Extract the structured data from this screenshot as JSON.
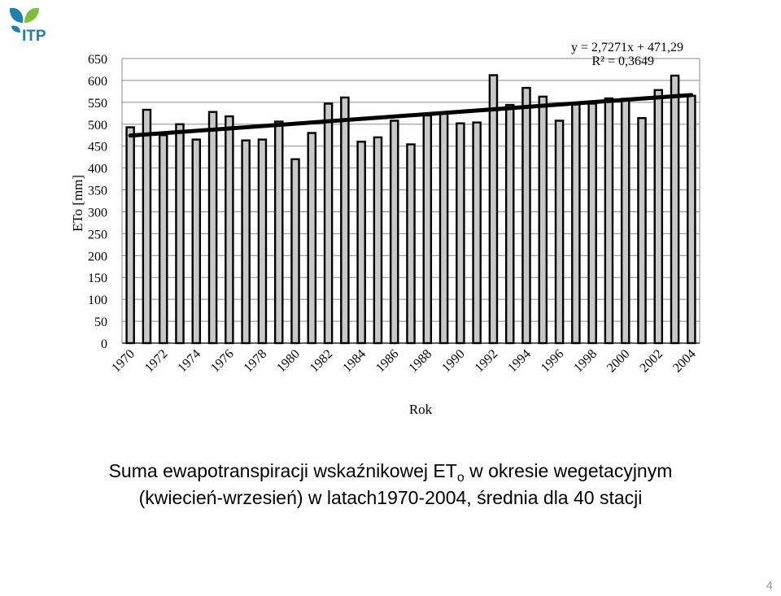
{
  "logo": {
    "text": "ITP",
    "leaf_color": "#1f7fb0",
    "leaf_color2": "#7cbf3a"
  },
  "chart_data": {
    "type": "bar",
    "title": "",
    "xlabel": "Rok",
    "ylabel": "ETo [mm]",
    "ylim": [
      0,
      650
    ],
    "yticks": [
      0,
      50,
      100,
      150,
      200,
      250,
      300,
      350,
      400,
      450,
      500,
      550,
      600,
      650
    ],
    "grid": true,
    "x_tick_labels": [
      "1970",
      "1972",
      "1974",
      "1976",
      "1978",
      "1980",
      "1982",
      "1984",
      "1986",
      "1988",
      "1990",
      "1992",
      "1994",
      "1996",
      "1998",
      "2000",
      "2002",
      "2004"
    ],
    "categories": [
      1970,
      1971,
      1972,
      1973,
      1974,
      1975,
      1976,
      1977,
      1978,
      1979,
      1980,
      1981,
      1982,
      1983,
      1984,
      1985,
      1986,
      1987,
      1988,
      1989,
      1990,
      1991,
      1992,
      1993,
      1994,
      1995,
      1996,
      1997,
      1998,
      1999,
      2000,
      2001,
      2002,
      2003,
      2004
    ],
    "values": [
      493,
      533,
      475,
      500,
      465,
      528,
      518,
      463,
      465,
      506,
      420,
      480,
      547,
      561,
      460,
      470,
      508,
      454,
      520,
      525,
      502,
      504,
      612,
      544,
      583,
      563,
      508,
      545,
      547,
      559,
      558,
      514,
      578,
      611,
      565
    ],
    "bar_color": "#c8c8c8",
    "trendline": {
      "equation": "y = 2,7271x + 471,29",
      "r2": "R² = 0,3649",
      "slope": 2.7271,
      "intercept": 471.29
    }
  },
  "caption": {
    "line1_pre": "Suma ewapotranspiracji wskaźnikowej ET",
    "line1_sub": "o",
    "line1_post": " w okresie wegetacyjnym",
    "line2": "(kwiecień-wrzesień) w latach1970-2004, średnia dla 40 stacji"
  },
  "page_number": "4"
}
